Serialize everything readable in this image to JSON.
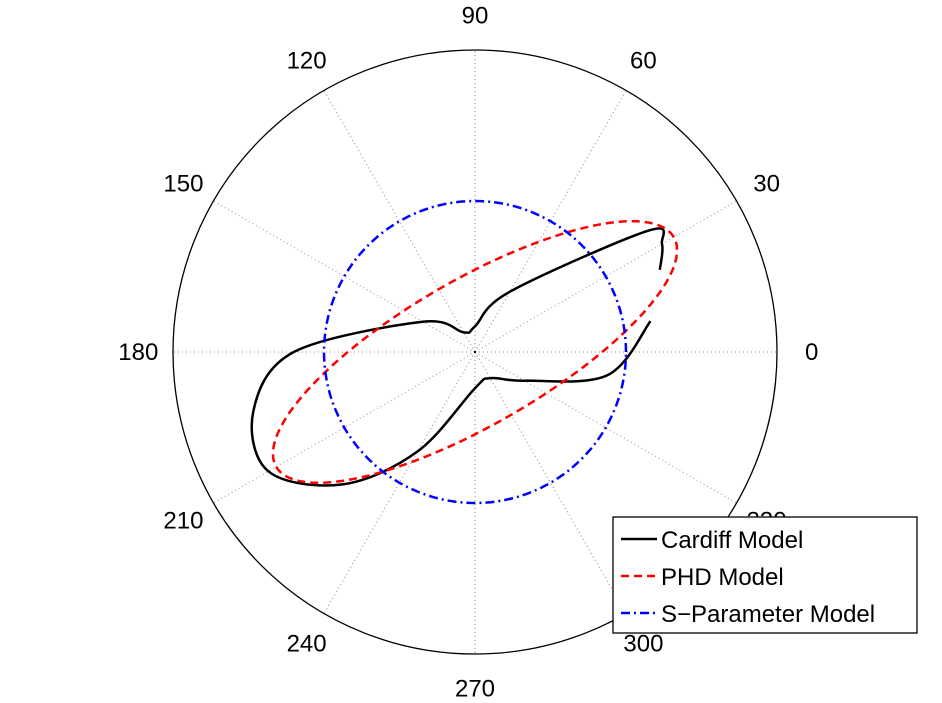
{
  "chart_data": {
    "type": "polar",
    "angle_ticks": [
      0,
      30,
      60,
      90,
      120,
      150,
      180,
      210,
      240,
      270,
      300,
      330
    ],
    "angle_tick_labels": [
      "0",
      "30",
      "60",
      "90",
      "120",
      "150",
      "180",
      "210",
      "240",
      "270",
      "300",
      "330"
    ],
    "grid": true,
    "rmax": 1,
    "legend": {
      "position": "bottom-right"
    },
    "series": [
      {
        "name": "Cardiff Model",
        "color": "#000000",
        "style": "solid",
        "points": [
          {
            "theta": 24,
            "r": 0.67
          },
          {
            "theta": 30,
            "r": 0.715
          },
          {
            "theta": 35,
            "r": 0.7
          },
          {
            "theta": 60,
            "r": 0.23
          },
          {
            "theta": 90,
            "r": 0.085
          },
          {
            "theta": 120,
            "r": 0.075
          },
          {
            "theta": 150,
            "r": 0.2
          },
          {
            "theta": 180,
            "r": 0.6
          },
          {
            "theta": 195,
            "r": 0.76
          },
          {
            "theta": 210,
            "r": 0.79
          },
          {
            "theta": 225,
            "r": 0.62
          },
          {
            "theta": 240,
            "r": 0.38
          },
          {
            "theta": 270,
            "r": 0.12
          },
          {
            "theta": 300,
            "r": 0.1
          },
          {
            "theta": 330,
            "r": 0.19
          },
          {
            "theta": 350,
            "r": 0.445
          },
          {
            "theta": 10,
            "r": 0.59
          }
        ]
      },
      {
        "name": "PHD Model",
        "color": "#ff0000",
        "style": "dashed",
        "ellipse": {
          "semi_major": 0.76,
          "semi_minor": 0.24,
          "orientation_deg": 30
        }
      },
      {
        "name": "S-Parameter Model",
        "color": "#0000ff",
        "style": "dash-dot",
        "circle_r": 0.5
      }
    ]
  },
  "legend_labels": [
    "Cardiff Model",
    "PHD Model",
    "S−Parameter Model"
  ]
}
